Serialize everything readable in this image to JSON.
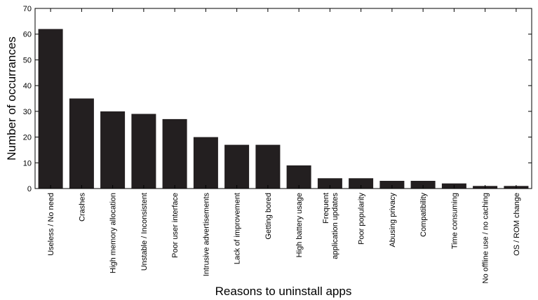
{
  "chart_data": {
    "type": "bar",
    "title": "",
    "xlabel": "Reasons to uninstall apps",
    "ylabel": "Number of occurrances",
    "ylim": [
      0,
      70
    ],
    "yticks": [
      0,
      10,
      20,
      30,
      40,
      50,
      60,
      70
    ],
    "grid": false,
    "bar_color": "#231f20",
    "categories": [
      "Useless / No need",
      "Crashes",
      "High memory allocation",
      "Unstable / Inconsistent",
      "Poor user interface",
      "Intrusive advertisements",
      "Lack of improvement",
      "Getting bored",
      "High battery usage",
      [
        "Frequent",
        "application updates"
      ],
      "Poor popularity",
      "Abusing privacy",
      "Compatibility",
      "Time consuming",
      "No offline use / no caching",
      "OS / ROM change"
    ],
    "values": [
      62,
      35,
      30,
      29,
      27,
      20,
      17,
      17,
      9,
      4,
      4,
      3,
      3,
      2,
      1,
      1
    ]
  }
}
